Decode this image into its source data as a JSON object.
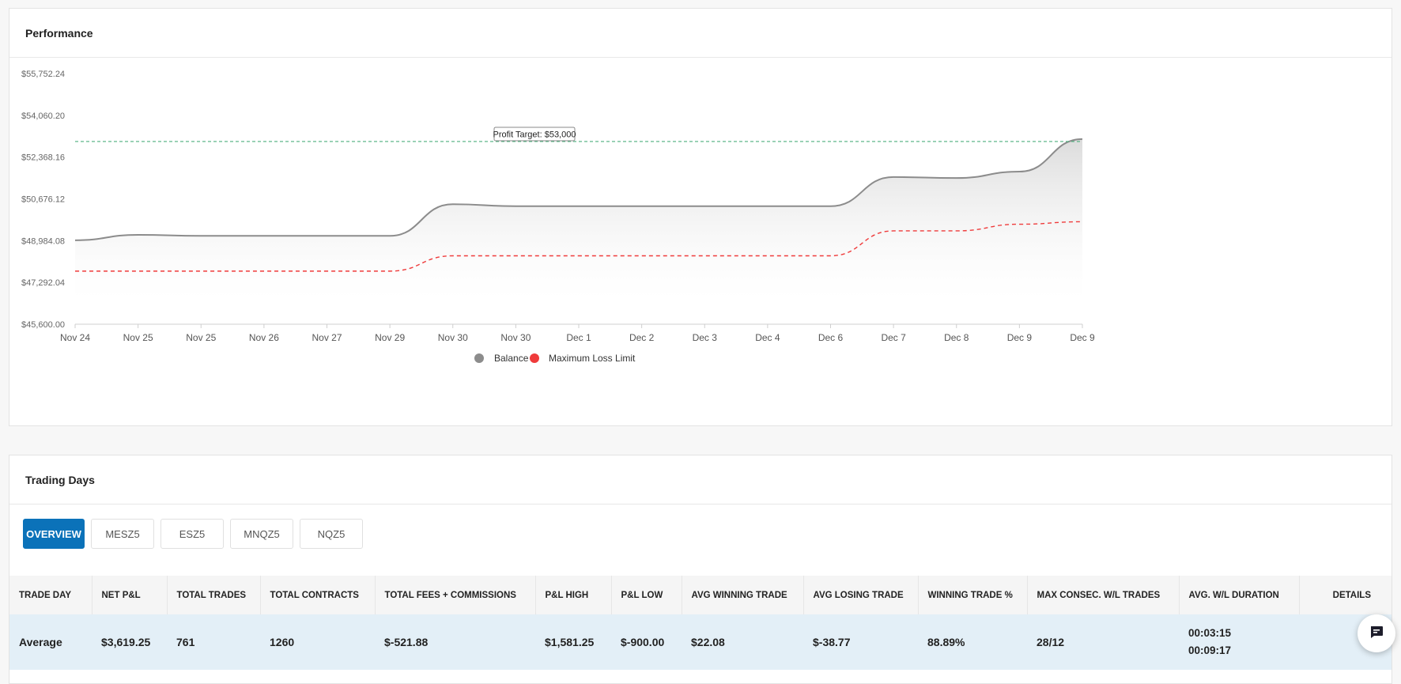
{
  "performance": {
    "title": "Performance",
    "chart_data": {
      "type": "line",
      "categories": [
        "Nov 24",
        "Nov 25",
        "Nov 25",
        "Nov 26",
        "Nov 27",
        "Nov 29",
        "Nov 30",
        "Nov 30",
        "Dec 1",
        "Dec 2",
        "Dec 3",
        "Dec 4",
        "Dec 6",
        "Dec 7",
        "Dec 8",
        "Dec 9",
        "Dec 9"
      ],
      "y_ticks": [
        "$55,752.24",
        "$54,060.20",
        "$52,368.16",
        "$50,676.12",
        "$48,984.08",
        "$47,292.04",
        "$45,600.00"
      ],
      "ylim": [
        45600,
        55752.24
      ],
      "series": [
        {
          "name": "Balance",
          "color": "#8c8c8c",
          "style": "solid-area",
          "values": [
            49000,
            49220,
            49180,
            49180,
            49180,
            49180,
            50460,
            50380,
            50380,
            50380,
            50380,
            50380,
            50380,
            51560,
            51520,
            51780,
            53100
          ]
        },
        {
          "name": "Maximum Loss Limit",
          "color": "#ef3b3b",
          "style": "dashed",
          "values": [
            47750,
            47750,
            47750,
            47750,
            47750,
            47750,
            48370,
            48370,
            48370,
            48370,
            48370,
            48370,
            48370,
            49380,
            49380,
            49650,
            49750
          ]
        }
      ],
      "reference_line": {
        "label": "Profit Target: $53,000",
        "value": 53000,
        "color": "#4caf7d"
      },
      "legend": {
        "placement": "bottom-center",
        "items": [
          {
            "label": "Balance",
            "color": "#8c8c8c"
          },
          {
            "label": "Maximum Loss Limit",
            "color": "#ef3b3b"
          }
        ]
      },
      "grid": false,
      "title": "",
      "xlabel": "",
      "ylabel": ""
    }
  },
  "trading_days": {
    "title": "Trading Days",
    "tabs": [
      {
        "label": "OVERVIEW",
        "active": true
      },
      {
        "label": "MESZ5",
        "active": false
      },
      {
        "label": "ESZ5",
        "active": false
      },
      {
        "label": "MNQZ5",
        "active": false
      },
      {
        "label": "NQZ5",
        "active": false
      }
    ],
    "columns": [
      "TRADE DAY",
      "NET P&L",
      "TOTAL TRADES",
      "TOTAL CONTRACTS",
      "TOTAL FEES + COMMISSIONS",
      "P&L HIGH",
      "P&L LOW",
      "AVG WINNING TRADE",
      "AVG LOSING TRADE",
      "WINNING TRADE %",
      "MAX CONSEC. W/L TRADES",
      "AVG. W/L DURATION",
      "DETAILS"
    ],
    "average_row": {
      "trade_day": "Average",
      "net_pl": "$3,619.25",
      "total_trades": "761",
      "total_contracts": "1260",
      "total_fees": "$-521.88",
      "pl_high": "$1,581.25",
      "pl_low": "$-900.00",
      "avg_winning": "$22.08",
      "avg_losing": "$-38.77",
      "winning_pct": "88.89%",
      "max_consec": "28/12",
      "avg_win_duration": "00:03:15",
      "avg_loss_duration": "00:09:17",
      "details": ""
    }
  },
  "chat": {
    "icon": "chat-icon"
  }
}
